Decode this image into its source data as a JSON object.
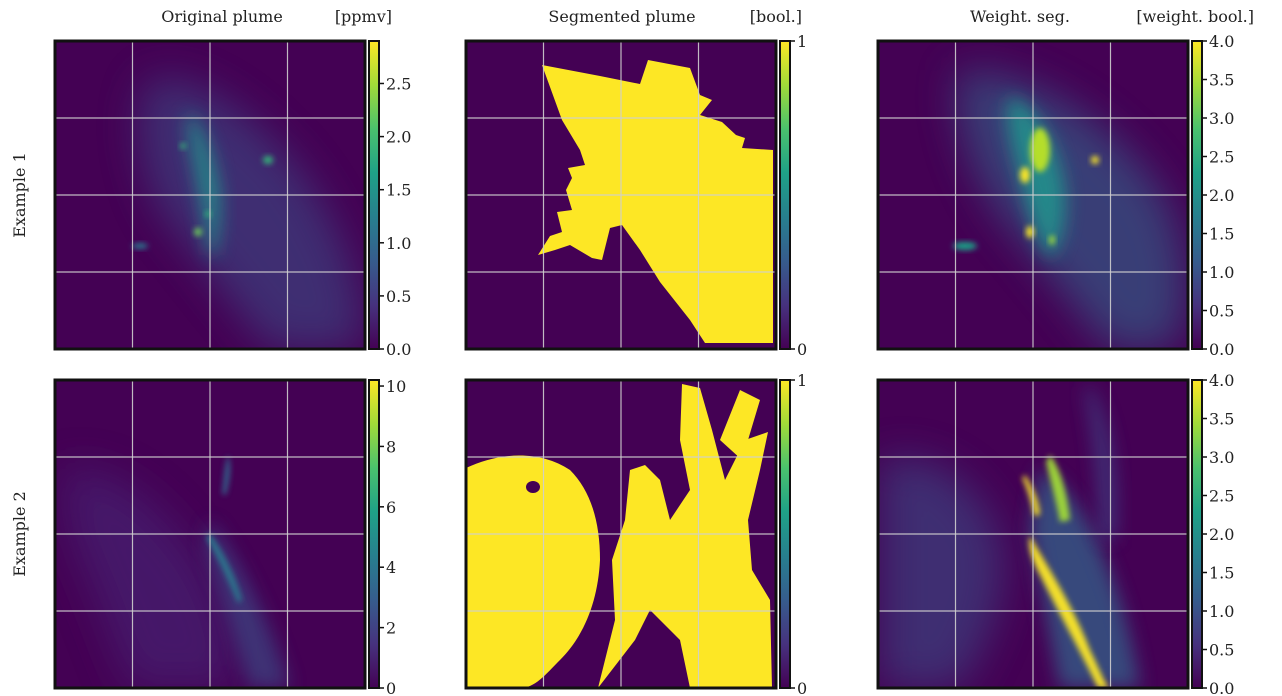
{
  "columns": [
    {
      "title": "Original plume",
      "unit": "[ppmv]"
    },
    {
      "title": "Segmented plume",
      "unit": "[bool.]"
    },
    {
      "title": "Weight. seg.",
      "unit": "[weight. bool.]"
    }
  ],
  "rows": [
    {
      "label": "Example 1"
    },
    {
      "label": "Example 2"
    }
  ],
  "colormap": [
    "#440154",
    "#46327e",
    "#365c8d",
    "#277f8e",
    "#1fa187",
    "#4ac16d",
    "#a0da39",
    "#fde725"
  ],
  "background_color": "#440154",
  "plume_color": "#fde725",
  "chart_data": [
    {
      "type": "heatmap",
      "panel": "example-1-original",
      "title": "Original plume",
      "unit": "[ppmv]",
      "colorbar": {
        "min": 0,
        "max": 2.9,
        "ticks": [
          0.0,
          0.5,
          1.0,
          1.5,
          2.0,
          2.5
        ],
        "tick_labels": [
          "0.0",
          "0.5",
          "1.0",
          "1.5",
          "2.0",
          "2.5"
        ]
      },
      "grid": true
    },
    {
      "type": "heatmap",
      "panel": "example-1-segmented",
      "title": "Segmented plume",
      "unit": "[bool.]",
      "colorbar": {
        "min": 0,
        "max": 1,
        "ticks": [
          0,
          1
        ],
        "tick_labels": [
          "0",
          "1"
        ]
      },
      "grid": true
    },
    {
      "type": "heatmap",
      "panel": "example-1-weighted",
      "title": "Weight. seg.",
      "unit": "[weight. bool.]",
      "colorbar": {
        "min": 0,
        "max": 4.0,
        "ticks": [
          0.0,
          0.5,
          1.0,
          1.5,
          2.0,
          2.5,
          3.0,
          3.5,
          4.0
        ],
        "tick_labels": [
          "0.0",
          "0.5",
          "1.0",
          "1.5",
          "2.0",
          "2.5",
          "3.0",
          "3.5",
          "4.0"
        ]
      },
      "grid": true
    },
    {
      "type": "heatmap",
      "panel": "example-2-original",
      "title": "Original plume",
      "unit": "[ppmv]",
      "colorbar": {
        "min": 0,
        "max": 10.2,
        "ticks": [
          0,
          2,
          4,
          6,
          8,
          10
        ],
        "tick_labels": [
          "0",
          "2",
          "4",
          "6",
          "8",
          "10"
        ]
      },
      "grid": true
    },
    {
      "type": "heatmap",
      "panel": "example-2-segmented",
      "title": "Segmented plume",
      "unit": "[bool.]",
      "colorbar": {
        "min": 0,
        "max": 1,
        "ticks": [
          0,
          1
        ],
        "tick_labels": [
          "0",
          "1"
        ]
      },
      "grid": true
    },
    {
      "type": "heatmap",
      "panel": "example-2-weighted",
      "title": "Weight. seg.",
      "unit": "[weight. bool.]",
      "colorbar": {
        "min": 0,
        "max": 4.0,
        "ticks": [
          0.0,
          0.5,
          1.0,
          1.5,
          2.0,
          2.5,
          3.0,
          3.5,
          4.0
        ],
        "tick_labels": [
          "0.0",
          "0.5",
          "1.0",
          "1.5",
          "2.0",
          "2.5",
          "3.0",
          "3.5",
          "4.0"
        ]
      },
      "grid": true
    }
  ]
}
